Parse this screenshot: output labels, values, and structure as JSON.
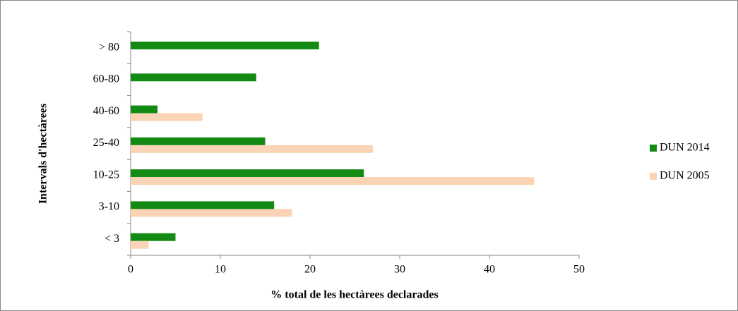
{
  "chart_data": {
    "type": "bar",
    "orientation": "horizontal",
    "categories": [
      "> 80",
      "60-80",
      "40-60",
      "25-40",
      "10-25",
      "3-10",
      "< 3"
    ],
    "series": [
      {
        "name": "DUN 2014",
        "color": "#138a13",
        "values": [
          21,
          14,
          3,
          15,
          26,
          16,
          5
        ]
      },
      {
        "name": "DUN 2005",
        "color": "#fad4b4",
        "values": [
          null,
          null,
          8,
          27,
          45,
          18,
          2
        ]
      }
    ],
    "xlim": [
      0,
      50
    ],
    "xticks": [
      0,
      10,
      20,
      30,
      40,
      50
    ],
    "xlabel": "% total de les hectàrees declarades",
    "ylabel": "Intervals d'hectàrees",
    "legend": "right"
  }
}
